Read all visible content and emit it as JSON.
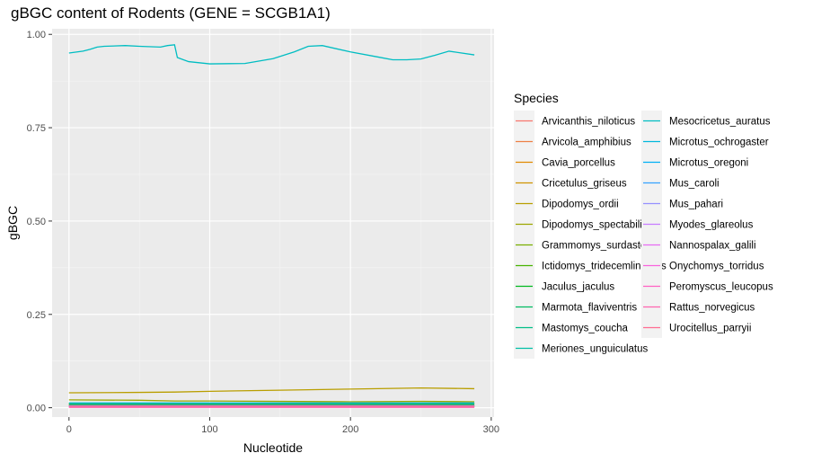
{
  "chart_data": {
    "type": "line",
    "title": "gBGC content of Rodents (GENE = SCGB1A1)",
    "xlabel": "Nucleotide",
    "ylabel": "gBGC",
    "xlim": [
      -12,
      302
    ],
    "ylim": [
      -0.025,
      1.015
    ],
    "xticks": [
      0,
      100,
      200,
      300
    ],
    "yticks": [
      0.0,
      0.25,
      0.5,
      0.75,
      1.0
    ],
    "xtick_labels": [
      "0",
      "100",
      "200",
      "300"
    ],
    "ytick_labels": [
      "0.00",
      "0.25",
      "0.50",
      "0.75",
      "1.00"
    ],
    "grid": true,
    "legend": {
      "title": "Species",
      "placement": "right",
      "columns": 2
    },
    "series": [
      {
        "name": "Arvicanthis_niloticus",
        "color": "#F8766D",
        "x": [
          0,
          288
        ],
        "y": [
          0.008,
          0.008
        ]
      },
      {
        "name": "Arvicola_amphibius",
        "color": "#EE8044",
        "x": [
          0,
          288
        ],
        "y": [
          0.006,
          0.006
        ]
      },
      {
        "name": "Cavia_porcellus",
        "color": "#E18A00",
        "x": [
          0,
          288
        ],
        "y": [
          0.007,
          0.007
        ]
      },
      {
        "name": "Cricetulus_griseus",
        "color": "#CF9400",
        "x": [
          0,
          288
        ],
        "y": [
          0.009,
          0.009
        ]
      },
      {
        "name": "Dipodomys_ordii",
        "color": "#B99E00",
        "x": [
          0,
          50,
          75,
          100,
          150,
          200,
          250,
          288
        ],
        "y": [
          0.04,
          0.041,
          0.042,
          0.044,
          0.047,
          0.05,
          0.053,
          0.051
        ]
      },
      {
        "name": "Dipodomys_spectabilis",
        "color": "#9DA700",
        "x": [
          0,
          50,
          75,
          100,
          150,
          200,
          250,
          288
        ],
        "y": [
          0.021,
          0.02,
          0.018,
          0.018,
          0.017,
          0.016,
          0.017,
          0.016
        ]
      },
      {
        "name": "Grammomys_surdaster",
        "color": "#7AAE00",
        "x": [
          0,
          288
        ],
        "y": [
          0.012,
          0.012
        ]
      },
      {
        "name": "Ictidomys_tridecemlineatus",
        "color": "#47B300",
        "x": [
          0,
          288
        ],
        "y": [
          0.011,
          0.011
        ]
      },
      {
        "name": "Jaculus_jaculus",
        "color": "#00B81F",
        "x": [
          0,
          288
        ],
        "y": [
          0.005,
          0.005
        ]
      },
      {
        "name": "Marmota_flaviventris",
        "color": "#00BB61",
        "x": [
          0,
          288
        ],
        "y": [
          0.01,
          0.01
        ]
      },
      {
        "name": "Mastomys_coucha",
        "color": "#00BE87",
        "x": [
          0,
          288
        ],
        "y": [
          0.004,
          0.004
        ]
      },
      {
        "name": "Meriones_unguiculatus",
        "color": "#00BFA6",
        "x": [
          0,
          288
        ],
        "y": [
          0.003,
          0.003
        ]
      },
      {
        "name": "Mesocricetus_auratus",
        "color": "#00BDC2",
        "x": [
          0,
          10,
          15,
          20,
          25,
          40,
          50,
          65,
          70,
          75,
          77,
          85,
          100,
          125,
          145,
          160,
          170,
          180,
          200,
          220,
          230,
          240,
          250,
          260,
          270,
          288
        ],
        "y": [
          0.95,
          0.955,
          0.96,
          0.966,
          0.968,
          0.97,
          0.968,
          0.966,
          0.97,
          0.972,
          0.938,
          0.927,
          0.921,
          0.922,
          0.935,
          0.953,
          0.968,
          0.97,
          0.953,
          0.939,
          0.932,
          0.932,
          0.934,
          0.944,
          0.955,
          0.945
        ]
      },
      {
        "name": "Microtus_ochrogaster",
        "color": "#00B8DC",
        "x": [
          0,
          288
        ],
        "y": [
          0.013,
          0.013
        ]
      },
      {
        "name": "Microtus_oregoni",
        "color": "#00B0F6",
        "x": [
          0,
          288
        ],
        "y": [
          0.006,
          0.006
        ]
      },
      {
        "name": "Mus_caroli",
        "color": "#35A2FF",
        "x": [
          0,
          288
        ],
        "y": [
          0.005,
          0.005
        ]
      },
      {
        "name": "Mus_pahari",
        "color": "#9590FF",
        "x": [
          0,
          288
        ],
        "y": [
          0.004,
          0.004
        ]
      },
      {
        "name": "Myodes_glareolus",
        "color": "#C77CFF",
        "x": [
          0,
          288
        ],
        "y": [
          0.003,
          0.003
        ]
      },
      {
        "name": "Nannospalax_galili",
        "color": "#E76BF3",
        "x": [
          0,
          288
        ],
        "y": [
          0.002,
          0.002
        ]
      },
      {
        "name": "Onychomys_torridus",
        "color": "#F962DD",
        "x": [
          0,
          288
        ],
        "y": [
          0.003,
          0.003
        ]
      },
      {
        "name": "Peromyscus_leucopus",
        "color": "#FF61C3",
        "x": [
          0,
          288
        ],
        "y": [
          0.002,
          0.002
        ]
      },
      {
        "name": "Rattus_norvegicus",
        "color": "#FF65AE",
        "x": [
          0,
          288
        ],
        "y": [
          0.001,
          0.001
        ]
      },
      {
        "name": "Urocitellus_parryii",
        "color": "#FF6C91",
        "x": [
          0,
          288
        ],
        "y": [
          0.004,
          0.004
        ]
      }
    ]
  }
}
